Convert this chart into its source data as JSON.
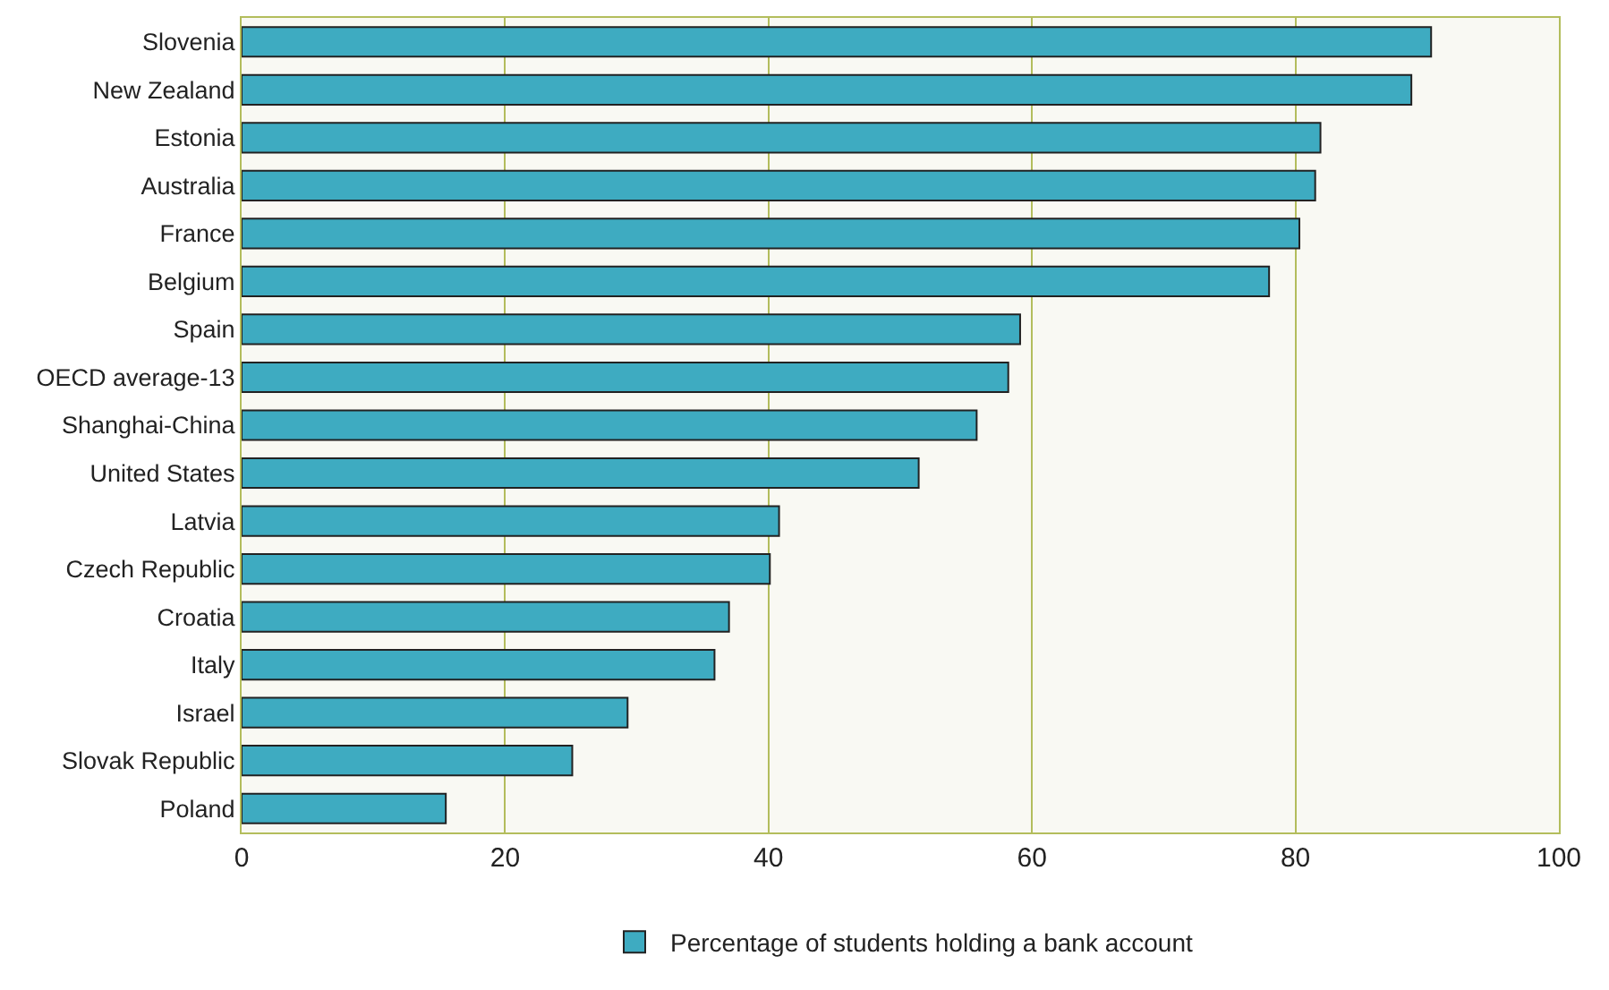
{
  "chart_data": {
    "type": "bar",
    "orientation": "horizontal",
    "categories": [
      "Slovenia",
      "New Zealand",
      "Estonia",
      "Australia",
      "France",
      "Belgium",
      "Spain",
      "OECD average-13",
      "Shanghai-China",
      "United States",
      "Latvia",
      "Czech Republic",
      "Croatia",
      "Italy",
      "Israel",
      "Slovak Republic",
      "Poland"
    ],
    "series": [
      {
        "name": "Percentage of students holding a bank account",
        "color": "#3eabc1",
        "values": [
          90.3,
          88.8,
          81.9,
          81.5,
          80.3,
          78.0,
          59.1,
          58.2,
          55.8,
          51.4,
          40.8,
          40.1,
          37.0,
          35.9,
          29.3,
          25.1,
          15.5
        ]
      }
    ],
    "xlim": [
      0,
      100
    ],
    "xticks": [
      0,
      20,
      40,
      60,
      80,
      100
    ],
    "grid": "x",
    "legend": "bottom"
  }
}
